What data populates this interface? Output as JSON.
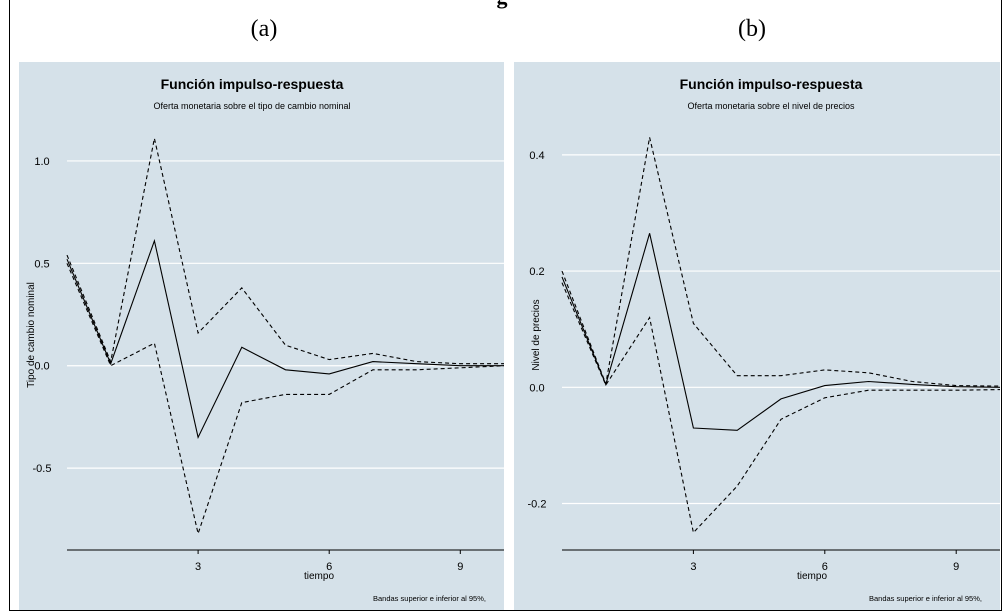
{
  "figure": {
    "top_title_fragment": "g"
  },
  "panel_labels": [
    "(a)",
    "(b)"
  ],
  "colors": {
    "background": "#d5e1e9",
    "gridline": "#ffffff",
    "line": "#000000"
  },
  "chart_data": [
    {
      "type": "line",
      "title": "Función impulso-respuesta",
      "subtitle": "Oferta monetaria sobre el tipo de cambio nominal",
      "xlabel": "tiempo",
      "ylabel": "Tipo de cambio nominal",
      "note": "Bandas superior e inferior al 95%,",
      "x": [
        0,
        1,
        2,
        3,
        4,
        5,
        6,
        7,
        8,
        9,
        10
      ],
      "xticks": [
        3,
        6,
        9
      ],
      "xtick_labels": [
        "3",
        "6",
        "9"
      ],
      "yticks": [
        -0.5,
        0,
        0.5,
        1
      ],
      "ytick_labels": [
        "-0.5",
        "0.0",
        "0.5",
        "1.0"
      ],
      "xlim": [
        0,
        10
      ],
      "ylim": [
        -0.9,
        1.2
      ],
      "grid": true,
      "series": [
        {
          "style": "solid",
          "values": [
            0.52,
            0.01,
            0.61,
            -0.35,
            0.09,
            -0.02,
            -0.04,
            0.02,
            0.01,
            0.0,
            0.0
          ]
        },
        {
          "style": "dashed",
          "values": [
            0.54,
            0.02,
            1.11,
            0.16,
            0.38,
            0.1,
            0.03,
            0.06,
            0.02,
            0.01,
            0.01
          ]
        },
        {
          "style": "dashed",
          "values": [
            0.5,
            0.0,
            0.11,
            -0.82,
            -0.18,
            -0.14,
            -0.14,
            -0.02,
            -0.02,
            -0.01,
            0.0
          ]
        }
      ]
    },
    {
      "type": "line",
      "title": "Función impulso-respuesta",
      "subtitle": "Oferta monetaria sobre el nivel de precios",
      "xlabel": "tiempo",
      "ylabel": "Nivel de precios",
      "note": "Bandas superior e inferior al 95%,",
      "x": [
        0,
        1,
        2,
        3,
        4,
        5,
        6,
        7,
        8,
        9,
        10
      ],
      "xticks": [
        3,
        6,
        9
      ],
      "xtick_labels": [
        "3",
        "6",
        "9"
      ],
      "yticks": [
        -0.2,
        0,
        0.2,
        0.4
      ],
      "ytick_labels": [
        "-0.2",
        "0.0",
        "0.2",
        "0.4"
      ],
      "xlim": [
        0,
        10
      ],
      "ylim": [
        -0.28,
        0.46
      ],
      "grid": true,
      "series": [
        {
          "style": "solid",
          "values": [
            0.19,
            0.005,
            0.265,
            -0.07,
            -0.074,
            -0.02,
            0.003,
            0.01,
            0.005,
            0.001,
            0.0
          ]
        },
        {
          "style": "dashed",
          "values": [
            0.2,
            0.006,
            0.43,
            0.11,
            0.02,
            0.02,
            0.03,
            0.025,
            0.01,
            0.003,
            0.002
          ]
        },
        {
          "style": "dashed",
          "values": [
            0.18,
            0.004,
            0.12,
            -0.25,
            -0.17,
            -0.055,
            -0.018,
            -0.005,
            -0.005,
            -0.005,
            -0.004
          ]
        }
      ]
    }
  ]
}
